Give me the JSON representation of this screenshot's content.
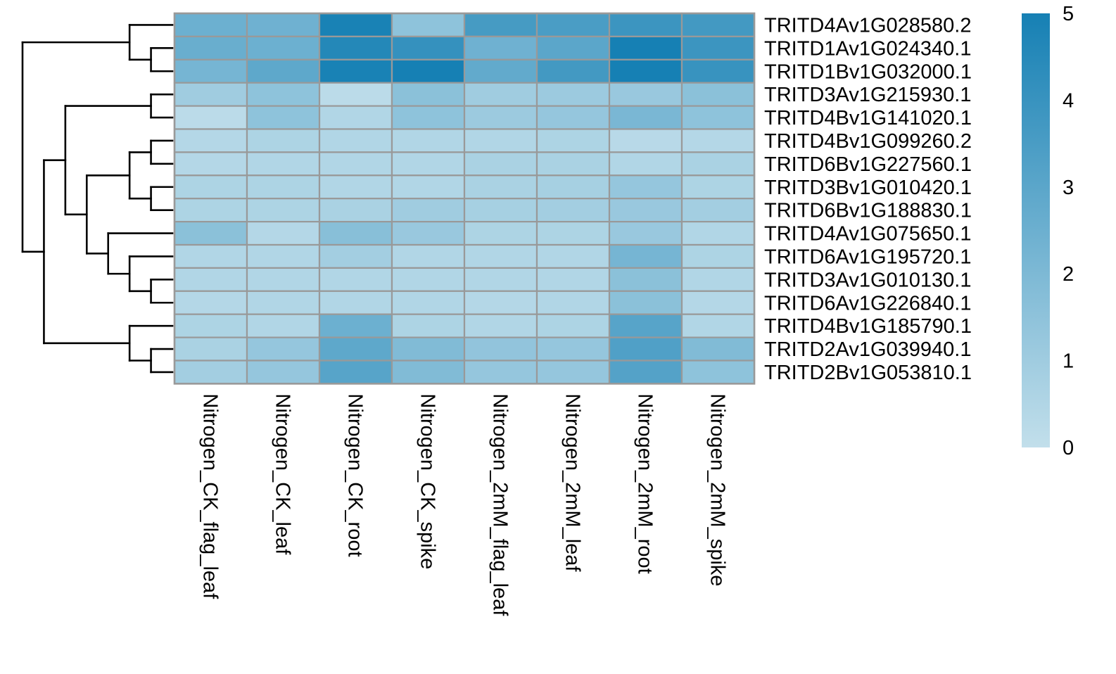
{
  "chart_data": {
    "type": "heatmap",
    "rows": [
      "TRITD4Av1G028580.2",
      "TRITD1Av1G024340.1",
      "TRITD1Bv1G032000.1",
      "TRITD3Av1G215930.1",
      "TRITD4Bv1G141020.1",
      "TRITD4Bv1G099260.2",
      "TRITD6Bv1G227560.1",
      "TRITD3Bv1G010420.1",
      "TRITD6Bv1G188830.1",
      "TRITD4Av1G075650.1",
      "TRITD6Av1G195720.1",
      "TRITD3Av1G010130.1",
      "TRITD6Av1G226840.1",
      "TRITD4Bv1G185790.1",
      "TRITD2Av1G039940.1",
      "TRITD2Bv1G053810.1"
    ],
    "columns": [
      "Nitrogen_CK_flag_leaf",
      "Nitrogen_CK_leaf",
      "Nitrogen_CK_root",
      "Nitrogen_CK_spike",
      "Nitrogen_2mM_flag_leaf",
      "Nitrogen_2mM_leaf",
      "Nitrogen_2mM_root",
      "Nitrogen_2mM_spike"
    ],
    "values": [
      [
        2.5,
        2.4,
        4.9,
        1.5,
        3.6,
        3.5,
        3.9,
        3.7
      ],
      [
        2.6,
        2.5,
        4.6,
        4.1,
        2.4,
        3.0,
        5.1,
        3.9
      ],
      [
        2.2,
        2.9,
        4.9,
        5.1,
        2.8,
        3.7,
        5.3,
        4.0
      ],
      [
        1.0,
        1.5,
        0.2,
        1.6,
        1.0,
        1.1,
        1.2,
        1.6
      ],
      [
        0.2,
        1.5,
        0.5,
        1.5,
        1.1,
        1.3,
        2.1,
        1.5
      ],
      [
        0.4,
        0.6,
        0.5,
        0.5,
        0.5,
        0.6,
        0.3,
        0.4
      ],
      [
        0.4,
        0.5,
        0.5,
        0.5,
        0.7,
        0.7,
        0.5,
        0.7
      ],
      [
        0.6,
        0.6,
        0.5,
        0.5,
        0.7,
        0.8,
        1.3,
        0.6
      ],
      [
        0.6,
        0.6,
        0.7,
        1.0,
        0.8,
        0.9,
        1.2,
        0.9
      ],
      [
        1.6,
        0.4,
        1.7,
        1.2,
        0.6,
        0.6,
        1.2,
        0.5
      ],
      [
        0.5,
        0.5,
        0.9,
        0.5,
        0.5,
        0.5,
        2.2,
        0.6
      ],
      [
        0.5,
        0.5,
        0.5,
        0.5,
        0.5,
        0.5,
        1.6,
        0.5
      ],
      [
        0.4,
        0.5,
        0.5,
        0.5,
        0.4,
        0.5,
        1.6,
        0.4
      ],
      [
        0.6,
        0.5,
        2.5,
        0.6,
        0.5,
        0.6,
        3.1,
        0.5
      ],
      [
        0.7,
        1.3,
        2.9,
        1.9,
        1.4,
        1.3,
        3.3,
        1.9
      ],
      [
        0.9,
        1.3,
        3.1,
        1.9,
        1.3,
        1.3,
        3.2,
        1.5
      ]
    ],
    "color_scale": {
      "min": 0,
      "max": 5,
      "low_color": "#c2dfeb",
      "high_color": "#1680b4",
      "ticks": [
        0,
        1,
        2,
        3,
        4,
        5
      ]
    },
    "row_dendrogram": true,
    "column_dendrogram": false,
    "cell_border_color": "#999999",
    "legend": "right",
    "title": "",
    "xlabel": "",
    "ylabel": ""
  }
}
